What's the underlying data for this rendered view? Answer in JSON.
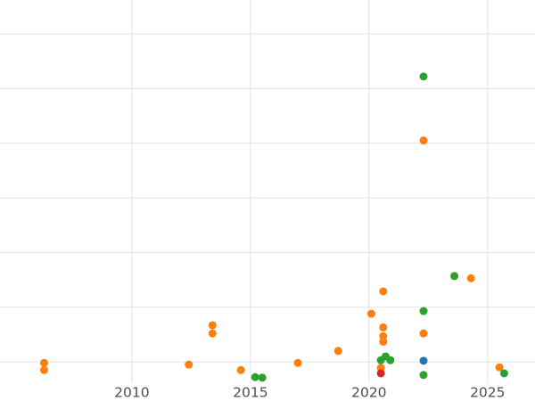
{
  "chart_data": {
    "type": "scatter",
    "title": "",
    "xlabel": "",
    "ylabel": "",
    "grid": true,
    "legend": "none",
    "background_color": "#ffffff",
    "gridline_color": "#e3e3e3",
    "tick_label_color": "#4f4f4f",
    "xlim": [
      2004.44,
      2027.0
    ],
    "ylim": [
      0.61,
      7.62
    ],
    "x_ticks": [
      {
        "label": "2010",
        "value": 2010
      },
      {
        "label": "2015",
        "value": 2015
      },
      {
        "label": "2020",
        "value": 2020
      },
      {
        "label": "2025",
        "value": 2025
      }
    ],
    "y_gridlines": [
      1,
      2,
      3,
      4,
      5,
      6,
      7
    ],
    "marker": "circle",
    "series": [
      {
        "name": "series-orange",
        "color": "#ff7f0e",
        "points": [
          [
            2006.3,
            0.98
          ],
          [
            2006.3,
            0.85
          ],
          [
            2012.4,
            0.95
          ],
          [
            2013.4,
            1.67
          ],
          [
            2013.4,
            1.52
          ],
          [
            2014.6,
            0.85
          ],
          [
            2017.0,
            0.98
          ],
          [
            2018.7,
            1.2
          ],
          [
            2020.1,
            1.88
          ],
          [
            2020.6,
            2.29
          ],
          [
            2020.6,
            1.63
          ],
          [
            2020.6,
            1.47
          ],
          [
            2020.6,
            1.37
          ],
          [
            2020.5,
            0.89
          ],
          [
            2022.3,
            5.05
          ],
          [
            2022.3,
            1.52
          ],
          [
            2024.3,
            2.53
          ],
          [
            2025.5,
            0.9
          ]
        ]
      },
      {
        "name": "series-green",
        "color": "#2ca02c",
        "points": [
          [
            2015.2,
            0.72
          ],
          [
            2015.5,
            0.71
          ],
          [
            2020.5,
            1.03
          ],
          [
            2020.7,
            1.1
          ],
          [
            2020.9,
            1.03
          ],
          [
            2022.3,
            6.22
          ],
          [
            2022.3,
            1.93
          ],
          [
            2022.3,
            0.76
          ],
          [
            2023.6,
            2.57
          ],
          [
            2025.7,
            0.79
          ]
        ]
      },
      {
        "name": "series-red",
        "color": "#d62728",
        "points": [
          [
            2020.5,
            0.79
          ]
        ]
      },
      {
        "name": "series-blue",
        "color": "#1f77b4",
        "points": [
          [
            2022.3,
            1.02
          ]
        ]
      }
    ]
  }
}
